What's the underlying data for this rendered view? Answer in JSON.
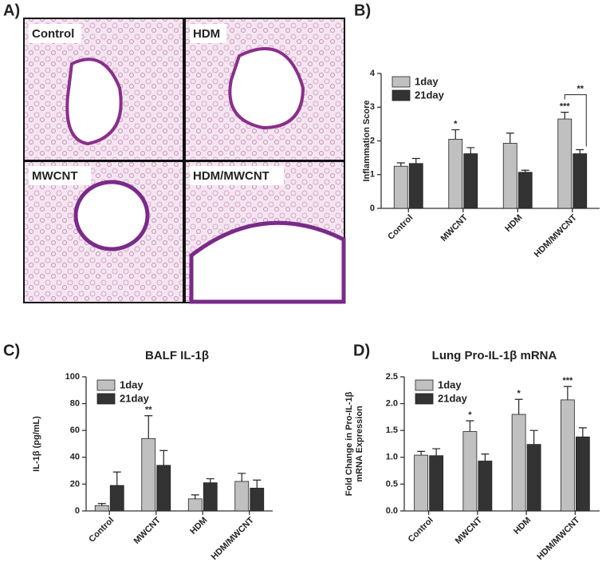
{
  "figure_a": {
    "label": "A)",
    "images": [
      "Control",
      "HDM",
      "MWCNT",
      "HDM/MWCNT"
    ]
  },
  "chart_data": [
    {
      "type": "bar",
      "panel_label": "B)",
      "ylabel": "Inflammation Score",
      "categories": [
        "Control",
        "MWCNT",
        "HDM",
        "HDM/MWCNT"
      ],
      "series": [
        {
          "name": "1day",
          "color": "#c0c0c0",
          "values": [
            1.25,
            2.05,
            1.93,
            2.65
          ],
          "errors": [
            0.1,
            0.28,
            0.3,
            0.2
          ],
          "significance": [
            null,
            "*",
            null,
            "***"
          ]
        },
        {
          "name": "21day",
          "color": "#333333",
          "values": [
            1.33,
            1.62,
            1.07,
            1.62
          ],
          "errors": [
            0.15,
            0.18,
            0.06,
            0.12
          ],
          "significance": [
            null,
            null,
            null,
            null
          ]
        }
      ],
      "comparisons": [
        {
          "text": "**",
          "category": "HDM/MWCNT"
        }
      ],
      "ylim": [
        0,
        4
      ],
      "yticks": [
        0,
        1,
        2,
        3,
        4
      ]
    },
    {
      "type": "bar",
      "panel_label": "C)",
      "title": "BALF IL-1β",
      "ylabel": "IL-1β (pg/mL)",
      "categories": [
        "Control",
        "MWCNT",
        "HDM",
        "HDM/MWCNT"
      ],
      "series": [
        {
          "name": "1day",
          "color": "#c0c0c0",
          "values": [
            4,
            54,
            9,
            22
          ],
          "errors": [
            1.5,
            17,
            3,
            6
          ],
          "significance": [
            null,
            "**",
            null,
            null
          ]
        },
        {
          "name": "21day",
          "color": "#333333",
          "values": [
            19,
            34,
            21,
            17
          ],
          "errors": [
            10,
            11,
            3,
            6
          ],
          "significance": [
            null,
            null,
            null,
            null
          ]
        }
      ],
      "ylim": [
        0,
        100
      ],
      "yticks": [
        0,
        20,
        40,
        60,
        80,
        100
      ]
    },
    {
      "type": "bar",
      "panel_label": "D)",
      "title": "Lung Pro-IL-1β mRNA",
      "ylabel": [
        "Fold Change in Pro-IL-1β",
        "mRNA Expression"
      ],
      "categories": [
        "Control",
        "MWCNT",
        "HDM",
        "HDM/MWCNT"
      ],
      "series": [
        {
          "name": "1day",
          "color": "#c0c0c0",
          "values": [
            1.04,
            1.48,
            1.8,
            2.07
          ],
          "errors": [
            0.07,
            0.2,
            0.28,
            0.25
          ],
          "significance": [
            null,
            "*",
            "*",
            "***"
          ]
        },
        {
          "name": "21day",
          "color": "#333333",
          "values": [
            1.03,
            0.93,
            1.24,
            1.38
          ],
          "errors": [
            0.13,
            0.13,
            0.26,
            0.17
          ],
          "significance": [
            null,
            null,
            null,
            null
          ]
        }
      ],
      "ylim": [
        0,
        2.5
      ],
      "yticks": [
        {
          "value": 0,
          "label": "0.0"
        },
        0.5,
        {
          "value": 1,
          "label": "1.0"
        },
        1.5,
        {
          "value": 2,
          "label": "2.0"
        },
        2.5
      ]
    }
  ]
}
